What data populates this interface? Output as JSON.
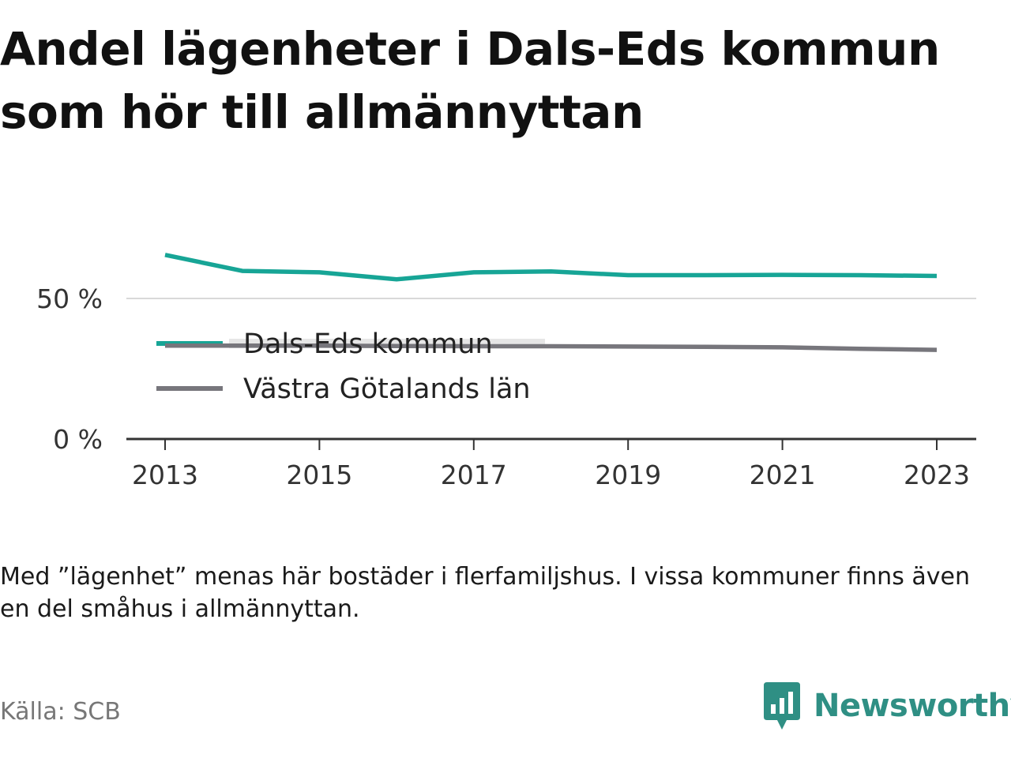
{
  "header": {
    "title_line1": "Andel lägenheter i Dals-Eds kommun",
    "title_line2": "som hör till allmännyttan"
  },
  "chart_data": {
    "type": "line",
    "x": [
      2013,
      2014,
      2015,
      2016,
      2017,
      2018,
      2019,
      2020,
      2021,
      2022,
      2023
    ],
    "x_tick_labels": [
      "2013",
      "2015",
      "2017",
      "2019",
      "2021",
      "2023"
    ],
    "y_tick_labels": [
      "0 %",
      "50 %"
    ],
    "ylim": [
      0,
      75
    ],
    "grid": "horizontal",
    "legend_placement": "inside-left",
    "series": [
      {
        "name": "Dals-Eds kommun",
        "color": "#17a596",
        "values": [
          65.5,
          59.8,
          59.3,
          56.8,
          59.3,
          59.6,
          58.3,
          58.3,
          58.4,
          58.3,
          58.0
        ]
      },
      {
        "name": "Västra Götalands län",
        "color": "#77767c",
        "values": [
          33.2,
          33.2,
          33.2,
          33.1,
          33.0,
          33.0,
          32.9,
          32.8,
          32.6,
          32.1,
          31.7
        ]
      }
    ]
  },
  "note": "Med ”lägenhet” menas här bostäder i flerfamiljshus. I vissa kommuner finns även en del småhus i allmännyttan.",
  "source": "Källa: SCB",
  "brand": {
    "name": "Newsworthy",
    "color": "#2f8f84",
    "icon": "newsworthy-logo-icon"
  }
}
